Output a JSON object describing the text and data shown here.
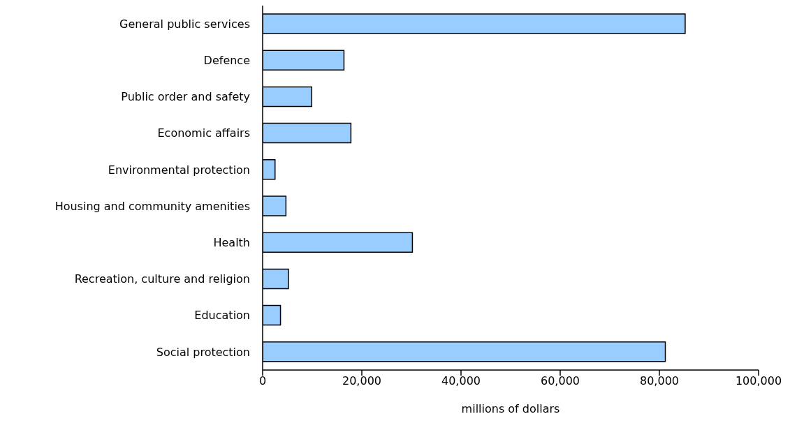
{
  "chart_data": {
    "type": "bar",
    "orientation": "horizontal",
    "xlabel": "millions of dollars",
    "categories": [
      "General public services",
      "Defence",
      "Public order and safety",
      "Economic affairs",
      "Environmental protection",
      "Housing and community amenities",
      "Health",
      "Recreation, culture and religion",
      "Education",
      "Social protection"
    ],
    "values": [
      85200,
      16400,
      9900,
      17800,
      2500,
      4700,
      30200,
      5200,
      3600,
      81200
    ],
    "color": "#99ccff",
    "xlim": [
      0,
      100000
    ],
    "xticks": [
      {
        "value": 0,
        "label": "0"
      },
      {
        "value": 20000,
        "label": "20,000"
      },
      {
        "value": 40000,
        "label": "40,000"
      },
      {
        "value": 60000,
        "label": "60,000"
      },
      {
        "value": 80000,
        "label": "80,000"
      },
      {
        "value": 100000,
        "label": "100,000"
      }
    ],
    "grid": false,
    "legend": false
  }
}
